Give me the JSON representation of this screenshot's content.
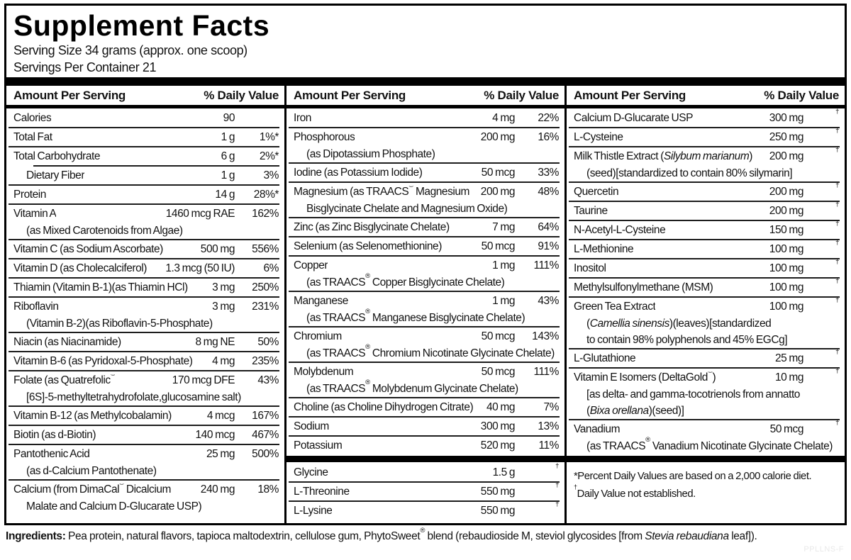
{
  "header": {
    "title": "Supplement Facts",
    "serving_size": "Serving Size 34 grams (approx. one scoop)",
    "servings_per_container": "Servings Per Container 21"
  },
  "columns": [
    {
      "header_left": "Amount Per Serving",
      "header_right": "% Daily Value",
      "sections": [
        {
          "type": "rows",
          "rows": [
            {
              "name": "Calories",
              "amount": "90",
              "dv": ""
            },
            {
              "name": "Total Fat",
              "amount": "1 g",
              "dv": "1%*"
            },
            {
              "name": "Total Carbohydrate",
              "amount": "6 g",
              "dv": "2%*"
            },
            {
              "name": "Dietary Fiber",
              "amount": "1 g",
              "dv": "3%",
              "indent": true
            },
            {
              "name": "Protein",
              "amount": "14 g",
              "dv": "28%*"
            },
            {
              "name": "Vitamin A",
              "amount": "1460 mcg RAE",
              "dv": "162%",
              "sub": [
                "(as Mixed Carotenoids from Algae)"
              ]
            },
            {
              "name": "Vitamin C (as Sodium Ascorbate)",
              "amount": "500 mg",
              "dv": "556%"
            },
            {
              "name": "Vitamin D (as Cholecalciferol)",
              "amount": "1.3 mcg (50 IU)",
              "dv": "6%"
            },
            {
              "name": "Thiamin (Vitamin B-1)(as Thiamin HCl)",
              "amount": "3 mg",
              "dv": "250%"
            },
            {
              "name": "Riboflavin",
              "amount": "3 mg",
              "dv": "231%",
              "sub": [
                "(Vitamin B-2)(as Riboflavin-5-Phosphate)"
              ]
            },
            {
              "name": "Niacin (as Niacinamide)",
              "amount": "8 mg NE",
              "dv": "50%"
            },
            {
              "name": "Vitamin B-6 (as Pyridoxal-5-Phosphate)",
              "amount": "4 mg",
              "dv": "235%"
            },
            {
              "name": "Folate (as Quatrefolic®",
              "amount": "170 mcg DFE",
              "dv": "43%",
              "sub": [
                "[6S]-5-methyltetrahydrofolate,glucosamine salt)"
              ]
            },
            {
              "name": "Vitamin B-12 (as Methylcobalamin)",
              "amount": "4 mcg",
              "dv": "167%"
            },
            {
              "name": "Biotin (as d-Biotin)",
              "amount": "140 mcg",
              "dv": "467%"
            },
            {
              "name": "Pantothenic Acid",
              "amount": "25 mg",
              "dv": "500%",
              "sub": [
                "(as d-Calcium Pantothenate)"
              ]
            },
            {
              "name": "Calcium (from DimaCal® Dicalcium",
              "amount": "240 mg",
              "dv": "18%",
              "sub": [
                "Malate and Calcium D-Glucarate USP)"
              ]
            }
          ]
        }
      ]
    },
    {
      "header_left": "Amount Per Serving",
      "header_right": "% Daily Value",
      "sections": [
        {
          "type": "rows",
          "rows": [
            {
              "name": "Iron",
              "amount": "4 mg",
              "dv": "22%"
            },
            {
              "name": "Phosphorous",
              "amount": "200 mg",
              "dv": "16%",
              "sub": [
                "(as Dipotassium Phosphate)"
              ]
            },
            {
              "name": "Iodine (as Potassium Iodide)",
              "amount": "50 mcg",
              "dv": "33%"
            },
            {
              "name": "Magnesium (as TRAACS® Magnesium",
              "amount": "200 mg",
              "dv": "48%",
              "sub": [
                "Bisglycinate Chelate and Magnesium Oxide)"
              ]
            },
            {
              "name": "Zinc (as Zinc Bisglycinate Chelate)",
              "amount": "7 mg",
              "dv": "64%"
            },
            {
              "name": "Selenium (as Selenomethionine)",
              "amount": "50 mcg",
              "dv": "91%"
            },
            {
              "name": "Copper",
              "amount": "1 mg",
              "dv": "111%",
              "sub": [
                "(as TRAACS® Copper Bisglycinate Chelate)"
              ]
            },
            {
              "name": "Manganese",
              "amount": "1 mg",
              "dv": "43%",
              "sub": [
                "(as TRAACS® Manganese Bisglycinate Chelate)"
              ]
            },
            {
              "name": "Chromium",
              "amount": "50 mcg",
              "dv": "143%",
              "sub": [
                "(as TRAACS® Chromium Nicotinate Glycinate Chelate)"
              ]
            },
            {
              "name": "Molybdenum",
              "amount": "50 mcg",
              "dv": "111%",
              "sub": [
                "(as TRAACS® Molybdenum Glycinate Chelate)"
              ]
            },
            {
              "name": "Choline (as Choline Dihydrogen Citrate)",
              "amount": "40 mg",
              "dv": "7%"
            },
            {
              "name": "Sodium",
              "amount": "300 mg",
              "dv": "13%"
            },
            {
              "name": "Potassium",
              "amount": "520 mg",
              "dv": "11%"
            }
          ]
        },
        {
          "type": "divider"
        },
        {
          "type": "rows",
          "rows": [
            {
              "name": "Glycine",
              "amount": "1.5 g",
              "dv": "†"
            },
            {
              "name": "L-Threonine",
              "amount": "550 mg",
              "dv": "†"
            },
            {
              "name": "L-Lysine",
              "amount": "550 mg",
              "dv": "†"
            }
          ]
        }
      ]
    },
    {
      "header_left": "Amount Per Serving",
      "header_right": "% Daily Value",
      "sections": [
        {
          "type": "rows",
          "rows": [
            {
              "name": "Calcium D-Glucarate USP",
              "amount": "300 mg",
              "dv": "†"
            },
            {
              "name": "L-Cysteine",
              "amount": "250 mg",
              "dv": "†"
            },
            {
              "name": [
                {
                  "t": "Milk Thistle Extract ("
                },
                {
                  "t": "Silybum marianum",
                  "i": true
                },
                {
                  "t": ")"
                }
              ],
              "amount": "200 mg",
              "dv": "†",
              "sub": [
                "(seed)[standardized to contain 80% silymarin]"
              ]
            },
            {
              "name": "Quercetin",
              "amount": "200 mg",
              "dv": "†"
            },
            {
              "name": "Taurine",
              "amount": "200 mg",
              "dv": "†"
            },
            {
              "name": "N-Acetyl-L-Cysteine",
              "amount": "150 mg",
              "dv": "†"
            },
            {
              "name": "L-Methionine",
              "amount": "100 mg",
              "dv": "†"
            },
            {
              "name": "Inositol",
              "amount": "100 mg",
              "dv": "†"
            },
            {
              "name": "Methylsulfonylmethane (MSM)",
              "amount": "100 mg",
              "dv": "†"
            },
            {
              "name": "Green Tea Extract",
              "amount": "100 mg",
              "dv": "†",
              "sub": [
                [
                  {
                    "t": "("
                  },
                  {
                    "t": "Camellia sinensis",
                    "i": true
                  },
                  {
                    "t": ")(leaves)[standardized"
                  }
                ],
                "to contain 98% polyphenols and 45% EGCg]"
              ]
            },
            {
              "name": "L-Glutathione",
              "amount": "25 mg",
              "dv": "†"
            },
            {
              "name": "Vitamin E Isomers (DeltaGold®)",
              "amount": "10 mg",
              "dv": "†",
              "sub": [
                "[as delta- and gamma-tocotrienols from annatto",
                [
                  {
                    "t": "("
                  },
                  {
                    "t": "Bixa orellana",
                    "i": true
                  },
                  {
                    "t": ")(seed)]"
                  }
                ]
              ]
            },
            {
              "name": "Vanadium",
              "amount": "50 mcg",
              "dv": "†",
              "sub": [
                "(as TRAACS® Vanadium Nicotinate Glycinate Chelate)"
              ]
            }
          ]
        },
        {
          "type": "divider"
        },
        {
          "type": "footnotes",
          "lines": [
            "*Percent Daily Values are based on a 2,000 calorie diet.",
            "†Daily Value not established."
          ]
        }
      ]
    }
  ],
  "ingredients": {
    "parts": [
      {
        "t": "Ingredients: ",
        "b": true
      },
      {
        "t": "Pea protein, natural flavors, tapioca maltodextrin, cellulose gum, PhytoSweet® blend (rebaudioside M, steviol glycosides [from "
      },
      {
        "t": "Stevia rebaudiana",
        "i": true
      },
      {
        "t": " leaf])."
      }
    ]
  },
  "watermark": "PPLLNS-F",
  "colors": {
    "text": "#121212",
    "bars": "#000000",
    "separator": "#1d1d1d",
    "watermark": "#e9e9e9"
  }
}
